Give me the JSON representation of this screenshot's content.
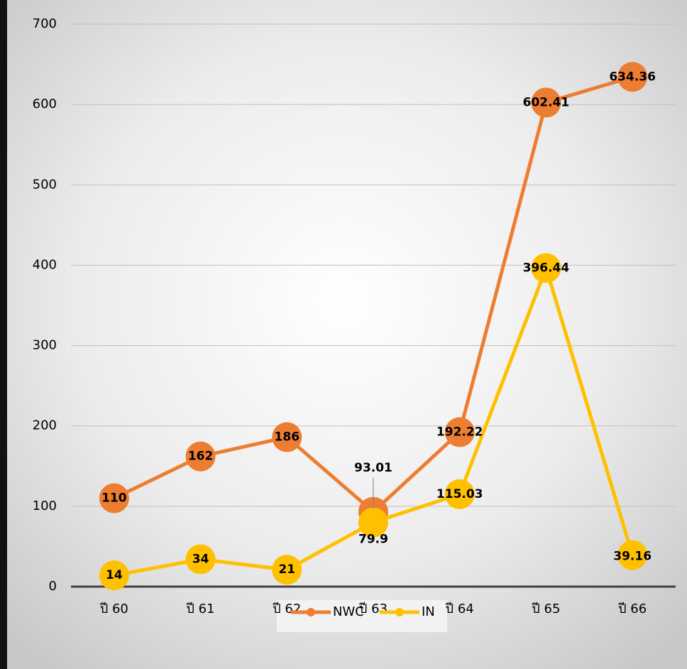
{
  "chart_data": {
    "type": "line",
    "categories": [
      "ปี 60",
      "ปี 61",
      "ปี 62",
      "ปี 63",
      "ปี 64",
      "ปี 65",
      "ปี 66"
    ],
    "series": [
      {
        "name": "NWC",
        "color": "#ED7D31",
        "values": [
          110,
          162,
          186,
          93.01,
          192.22,
          602.41,
          634.36
        ]
      },
      {
        "name": "IN",
        "color": "#FFC000",
        "values": [
          14,
          34,
          21,
          79.9,
          115.03,
          396.44,
          39.16
        ]
      }
    ],
    "ylim": [
      0,
      700
    ],
    "yticks": [
      0,
      100,
      200,
      300,
      400,
      500,
      600,
      700
    ],
    "grid": true,
    "legend": "bottom"
  }
}
